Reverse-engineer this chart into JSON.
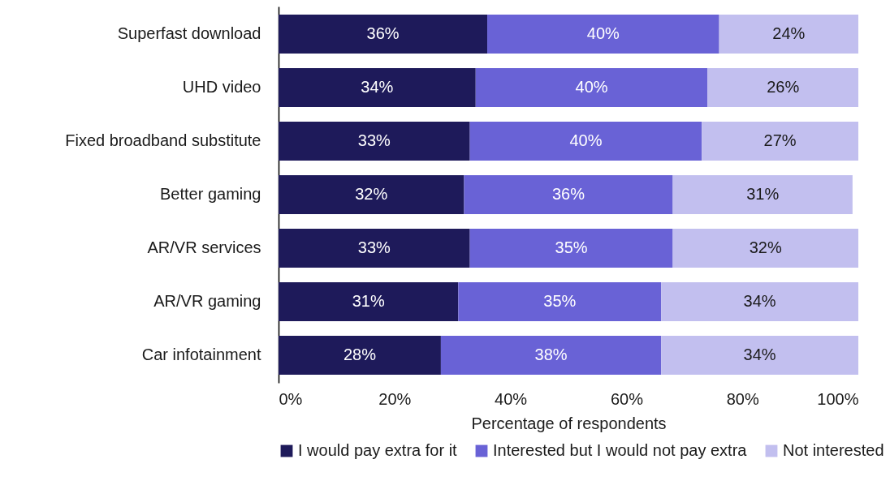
{
  "chart_data": {
    "type": "bar",
    "orientation": "horizontal",
    "stacked": true,
    "xlabel": "Percentage of respondents",
    "legend": "bottom",
    "categories": [
      "Superfast download",
      "UHD video",
      "Fixed broadband substitute",
      "Better gaming",
      "AR/VR services",
      "AR/VR gaming",
      "Car infotainment"
    ],
    "xlim": [
      0,
      100
    ],
    "xticks": [
      {
        "value": 0,
        "label": "0%"
      },
      {
        "value": 20,
        "label": "20%"
      },
      {
        "value": 40,
        "label": "40%"
      },
      {
        "value": 60,
        "label": "60%"
      },
      {
        "value": 80,
        "label": "80%"
      },
      {
        "value": 100,
        "label": "100%"
      }
    ],
    "series": [
      {
        "name": "I would pay extra for it",
        "color": "#1e1a5a",
        "values": [
          36,
          34,
          33,
          32,
          33,
          31,
          28
        ],
        "value_labels": [
          "36%",
          "34%",
          "33%",
          "32%",
          "33%",
          "31%",
          "28%"
        ]
      },
      {
        "name": "Interested but I would not pay extra",
        "color": "#6962d6",
        "values": [
          40,
          40,
          40,
          36,
          35,
          35,
          38
        ],
        "value_labels": [
          "40%",
          "40%",
          "40%",
          "36%",
          "35%",
          "35%",
          "38%"
        ]
      },
      {
        "name": "Not interested",
        "color": "#c2bfef",
        "values": [
          24,
          26,
          27,
          31,
          32,
          34,
          34
        ],
        "value_labels": [
          "24%",
          "26%",
          "27%",
          "31%",
          "32%",
          "34%",
          "34%"
        ]
      }
    ]
  }
}
